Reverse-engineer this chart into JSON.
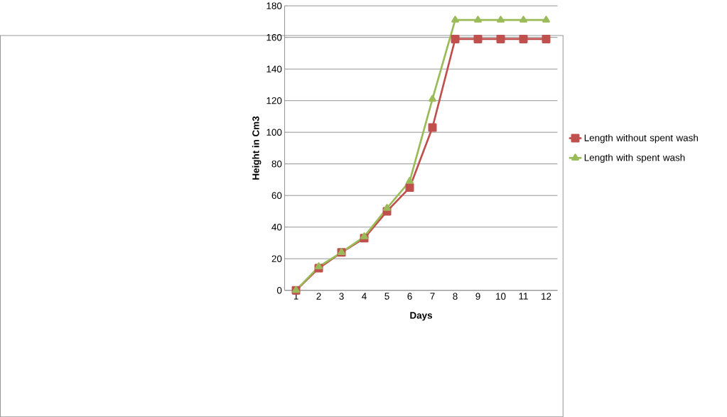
{
  "chart_data": {
    "type": "line",
    "xlabel": "Days",
    "ylabel": "Height in Cm3",
    "categories": [
      "1",
      "2",
      "3",
      "4",
      "5",
      "6",
      "7",
      "8",
      "9",
      "10",
      "11",
      "12"
    ],
    "series": [
      {
        "name": "Length without spent wash",
        "color": "#c0504d",
        "marker": "square",
        "values": [
          0,
          14,
          24,
          33,
          50,
          65,
          103,
          159,
          159,
          159,
          159,
          159
        ]
      },
      {
        "name": "Length with spent wash",
        "color": "#9bbb59",
        "marker": "triangle",
        "values": [
          0,
          15,
          24,
          34,
          52,
          69,
          121,
          171,
          171,
          171,
          171,
          171
        ]
      }
    ],
    "ylim": [
      0,
      180
    ],
    "yticks": [
      0,
      20,
      40,
      60,
      80,
      100,
      120,
      140,
      160,
      180
    ],
    "grid": "y",
    "legend": "right"
  }
}
